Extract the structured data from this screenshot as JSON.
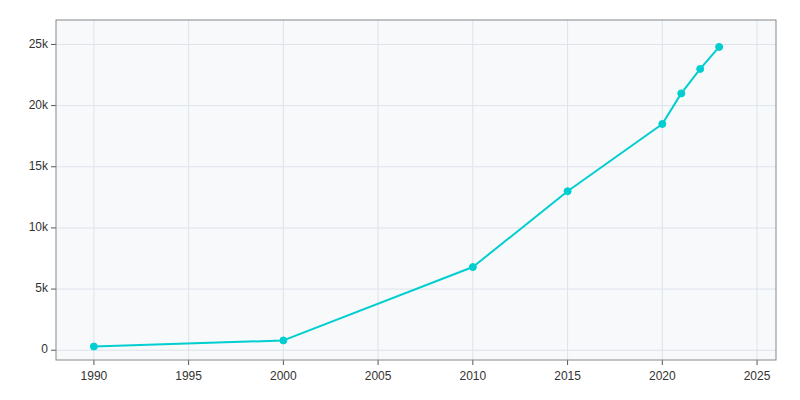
{
  "chart_data": {
    "type": "line",
    "x": [
      1990,
      2000,
      2010,
      2015,
      2020,
      2021,
      2022,
      2023
    ],
    "values": [
      300,
      800,
      6800,
      13000,
      18500,
      21000,
      23000,
      24800
    ],
    "color": "#00CED1",
    "marker": "circle",
    "xlim": [
      1988,
      2026
    ],
    "ylim": [
      -800,
      27000
    ],
    "xticks": [
      1990,
      1995,
      2000,
      2005,
      2010,
      2015,
      2020,
      2025
    ],
    "yticks": [
      0,
      {
        "value": 5000,
        "label": "5k"
      },
      {
        "value": 10000,
        "label": "10k"
      },
      {
        "value": 15000,
        "label": "15k"
      },
      {
        "value": 20000,
        "label": "20k"
      },
      {
        "value": 25000,
        "label": "25k"
      }
    ],
    "grid": true
  }
}
